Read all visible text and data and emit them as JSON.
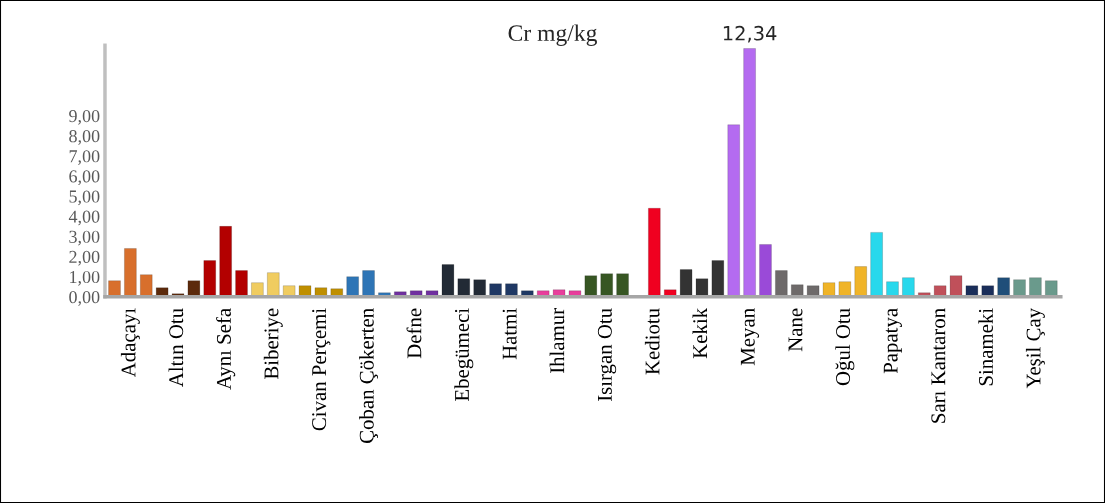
{
  "chart_data": {
    "type": "bar",
    "title": "Cr mg/kg",
    "categories": [
      null,
      "Adaçayı",
      null,
      null,
      "Altın Otu",
      null,
      null,
      "Aynı Sefa",
      null,
      null,
      "Biberiye",
      null,
      null,
      "Civan Perçemi",
      null,
      null,
      "Çoban Çökerten",
      null,
      null,
      "Defne",
      null,
      null,
      "Ebegümeci",
      null,
      null,
      "Hatmi",
      null,
      null,
      "Ihlamur",
      null,
      null,
      "Isırgan Otu",
      null,
      null,
      "Kediotu",
      null,
      null,
      "Kekik",
      null,
      null,
      "Meyan",
      null,
      null,
      "Nane",
      null,
      null,
      "Oğul Otu",
      null,
      null,
      "Papatya",
      null,
      null,
      "Sarı Kantaron",
      null,
      null,
      "Sinameki",
      null,
      null,
      "Yeşil Çay",
      null
    ],
    "values": [
      0.8,
      2.4,
      1.1,
      0.45,
      0.15,
      0.8,
      1.8,
      3.5,
      1.3,
      0.7,
      1.2,
      0.55,
      0.55,
      0.45,
      0.4,
      1.0,
      1.3,
      0.2,
      0.25,
      0.3,
      0.3,
      1.6,
      0.9,
      0.85,
      0.65,
      0.65,
      0.3,
      0.3,
      0.35,
      0.3,
      1.05,
      1.15,
      1.15,
      0.05,
      4.4,
      0.35,
      1.35,
      0.9,
      1.8,
      8.55,
      12.34,
      2.6,
      1.3,
      0.6,
      0.55,
      0.7,
      0.75,
      1.5,
      3.2,
      0.75,
      0.95,
      0.2,
      0.55,
      1.05,
      0.55,
      0.55,
      0.95,
      0.85,
      0.95,
      0.8
    ],
    "colors": [
      "#d86f2c",
      "#d86f2c",
      "#d86f2c",
      "#5c2a0c",
      "#5c2a0c",
      "#5c2a0c",
      "#b30000",
      "#b30000",
      "#b30000",
      "#f0cc60",
      "#f0cc60",
      "#f0cc60",
      "#bf8f00",
      "#bf8f00",
      "#bf8f00",
      "#2e75b6",
      "#2e75b6",
      "#2e75b6",
      "#7030a0",
      "#7030a0",
      "#7030a0",
      "#222a35",
      "#222a35",
      "#222a35",
      "#1f3864",
      "#1f3864",
      "#1f3864",
      "#e83e9c",
      "#e83e9c",
      "#e83e9c",
      "#375623",
      "#375623",
      "#375623",
      "#f00020",
      "#f00020",
      "#f00020",
      "#333333",
      "#333333",
      "#333333",
      "#b46bf0",
      "#b46bf0",
      "#9a4ad8",
      "#6e6a6a",
      "#6e6a6a",
      "#6e6a6a",
      "#f0b428",
      "#f0b428",
      "#f0b428",
      "#28d8ec",
      "#28d8ec",
      "#28d8ec",
      "#c0505a",
      "#c0505a",
      "#c0505a",
      "#1a2e5a",
      "#1a2e5a",
      "#1f4e79",
      "#6a9a8c",
      "#6a9a8c",
      "#6a9a8c"
    ],
    "value_labels": [
      null,
      null,
      null,
      null,
      null,
      null,
      null,
      null,
      null,
      null,
      null,
      null,
      null,
      null,
      null,
      null,
      null,
      null,
      null,
      null,
      null,
      null,
      null,
      null,
      null,
      null,
      null,
      null,
      null,
      null,
      null,
      null,
      null,
      null,
      null,
      null,
      null,
      null,
      null,
      null,
      "12,34",
      null,
      null,
      null,
      null,
      null,
      null,
      null,
      null,
      null,
      null,
      null,
      null,
      null,
      null,
      null,
      null,
      null,
      null,
      null
    ],
    "ylim": [
      0,
      12.5
    ],
    "yticks": [
      {
        "value": 0,
        "label": "0,00"
      },
      {
        "value": 1,
        "label": "1,00"
      },
      {
        "value": 2,
        "label": "2,00"
      },
      {
        "value": 3,
        "label": "3,00"
      },
      {
        "value": 4,
        "label": "4,00"
      },
      {
        "value": 5,
        "label": "5,00"
      },
      {
        "value": 6,
        "label": "6,00"
      },
      {
        "value": 7,
        "label": "7,00"
      },
      {
        "value": 8,
        "label": "8,00"
      },
      {
        "value": 9,
        "label": "9,00"
      }
    ],
    "grid": false,
    "legend": false
  }
}
